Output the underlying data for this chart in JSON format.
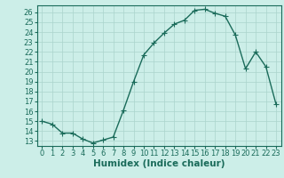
{
  "x": [
    0,
    1,
    2,
    3,
    4,
    5,
    6,
    7,
    8,
    9,
    10,
    11,
    12,
    13,
    14,
    15,
    16,
    17,
    18,
    19,
    20,
    21,
    22,
    23
  ],
  "y": [
    15.0,
    14.7,
    13.8,
    13.8,
    13.2,
    12.8,
    13.1,
    13.4,
    16.1,
    19.0,
    21.7,
    22.9,
    23.9,
    24.8,
    25.2,
    26.2,
    26.3,
    25.9,
    25.6,
    23.7,
    20.3,
    22.0,
    20.5,
    16.7
  ],
  "line_color": "#1a6b5a",
  "marker": "+",
  "marker_size": 4,
  "bg_color": "#cceee8",
  "grid_color": "#aad4cc",
  "xlabel": "Humidex (Indice chaleur)",
  "xlabel_fontsize": 7.5,
  "xlim": [
    -0.5,
    23.5
  ],
  "ylim": [
    12.5,
    26.7
  ],
  "yticks": [
    13,
    14,
    15,
    16,
    17,
    18,
    19,
    20,
    21,
    22,
    23,
    24,
    25,
    26
  ],
  "xticks": [
    0,
    1,
    2,
    3,
    4,
    5,
    6,
    7,
    8,
    9,
    10,
    11,
    12,
    13,
    14,
    15,
    16,
    17,
    18,
    19,
    20,
    21,
    22,
    23
  ],
  "tick_fontsize": 6,
  "line_width": 1.0
}
